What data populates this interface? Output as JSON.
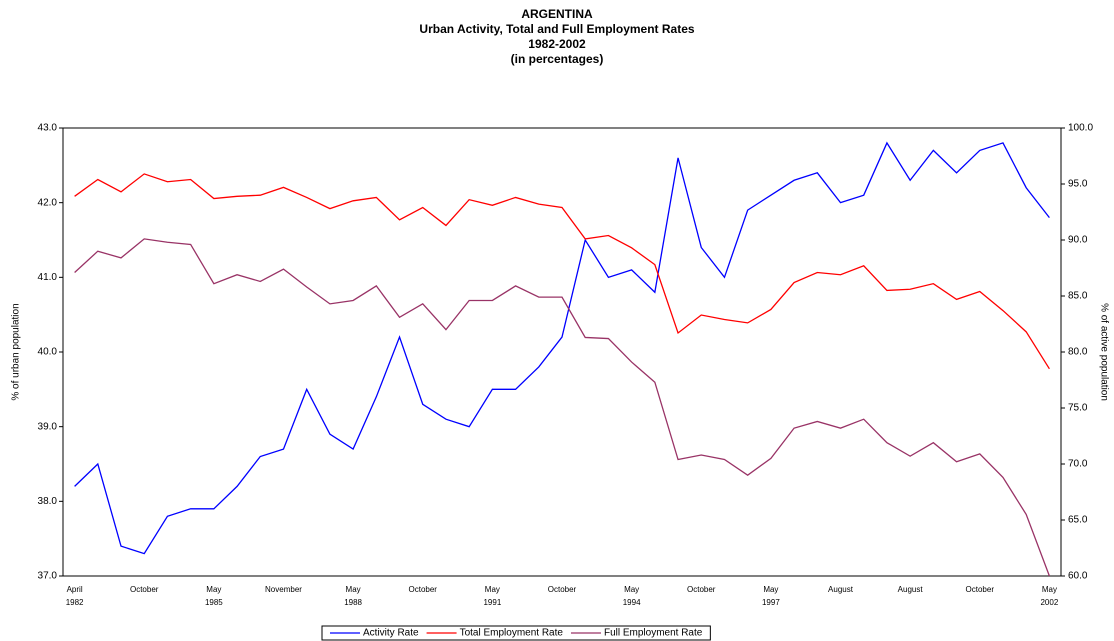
{
  "chart_data": {
    "type": "line",
    "title": "ARGENTINA",
    "subtitle": "Urban Activity, Total and Full Employment Rates",
    "period": "1982-2002",
    "unit_note": "(in percentages)",
    "y_label": "% of urban population",
    "y2_label": "% of active population",
    "categories": [
      "April 1982",
      null,
      null,
      "October",
      null,
      null,
      "May 1985",
      null,
      null,
      "November",
      null,
      null,
      "May 1988",
      null,
      null,
      "October",
      null,
      null,
      "May 1991",
      null,
      null,
      "October",
      null,
      null,
      "May 1994",
      null,
      null,
      "October",
      null,
      null,
      "May 1997",
      null,
      null,
      "August",
      null,
      null,
      "August",
      null,
      null,
      "October",
      null,
      null,
      "May 2002"
    ],
    "ylim": [
      37,
      43
    ],
    "yticks": [
      {
        "value": 37,
        "label": "37.0"
      },
      {
        "value": 38,
        "label": "38.0"
      },
      {
        "value": 39,
        "label": "39.0"
      },
      {
        "value": 40,
        "label": "40.0"
      },
      {
        "value": 41,
        "label": "41.0"
      },
      {
        "value": 42,
        "label": "42.0"
      },
      {
        "value": 43,
        "label": "43.0"
      }
    ],
    "y2lim": [
      60,
      100
    ],
    "y2ticks": [
      {
        "value": 60,
        "label": "60.0"
      },
      {
        "value": 65,
        "label": "65.0"
      },
      {
        "value": 70,
        "label": "70.0"
      },
      {
        "value": 75,
        "label": "75.0"
      },
      {
        "value": 80,
        "label": "80.0"
      },
      {
        "value": 85,
        "label": "85.0"
      },
      {
        "value": 90,
        "label": "90.0"
      },
      {
        "value": 95,
        "label": "95.0"
      },
      {
        "value": 100,
        "label": "100.0"
      }
    ],
    "legend": "bottom",
    "series": [
      {
        "name": "Activity Rate",
        "color": "#0000ff",
        "axis": "y",
        "values": [
          38.2,
          38.5,
          37.4,
          37.3,
          37.8,
          37.9,
          37.9,
          38.2,
          38.6,
          38.7,
          39.5,
          38.9,
          38.7,
          39.4,
          40.2,
          39.3,
          39.1,
          39.0,
          39.5,
          39.5,
          39.8,
          40.2,
          41.5,
          41.0,
          41.1,
          40.8,
          42.6,
          41.4,
          41.0,
          41.9,
          42.1,
          42.3,
          42.4,
          42.0,
          42.1,
          42.8,
          42.3,
          42.7,
          42.4,
          42.7,
          42.8,
          42.2,
          41.8
        ]
      },
      {
        "name": "Total Employment Rate",
        "color": "#ff0000",
        "axis": "y2",
        "values": [
          93.9,
          95.4,
          94.3,
          95.9,
          95.2,
          95.4,
          93.7,
          93.9,
          94.0,
          94.7,
          93.8,
          92.8,
          93.5,
          93.8,
          91.8,
          92.9,
          91.3,
          93.6,
          93.1,
          93.8,
          93.2,
          92.9,
          90.1,
          90.4,
          89.3,
          87.8,
          81.7,
          83.3,
          82.9,
          82.6,
          83.8,
          86.2,
          87.1,
          86.9,
          87.7,
          85.5,
          85.6,
          86.1,
          84.7,
          85.4,
          83.7,
          81.8,
          78.5
        ]
      },
      {
        "name": "Full Employment Rate",
        "color": "#993366",
        "axis": "y2",
        "values": [
          87.1,
          89.0,
          88.4,
          90.1,
          89.8,
          89.6,
          86.1,
          86.9,
          86.3,
          87.4,
          85.8,
          84.3,
          84.6,
          85.9,
          83.1,
          84.3,
          82.0,
          84.6,
          84.6,
          85.9,
          84.9,
          84.9,
          81.3,
          81.2,
          79.1,
          77.3,
          70.4,
          70.8,
          70.4,
          69.0,
          70.5,
          73.2,
          73.8,
          73.2,
          74.0,
          71.9,
          70.7,
          71.9,
          70.2,
          70.9,
          68.8,
          65.5,
          60.0
        ]
      }
    ]
  }
}
